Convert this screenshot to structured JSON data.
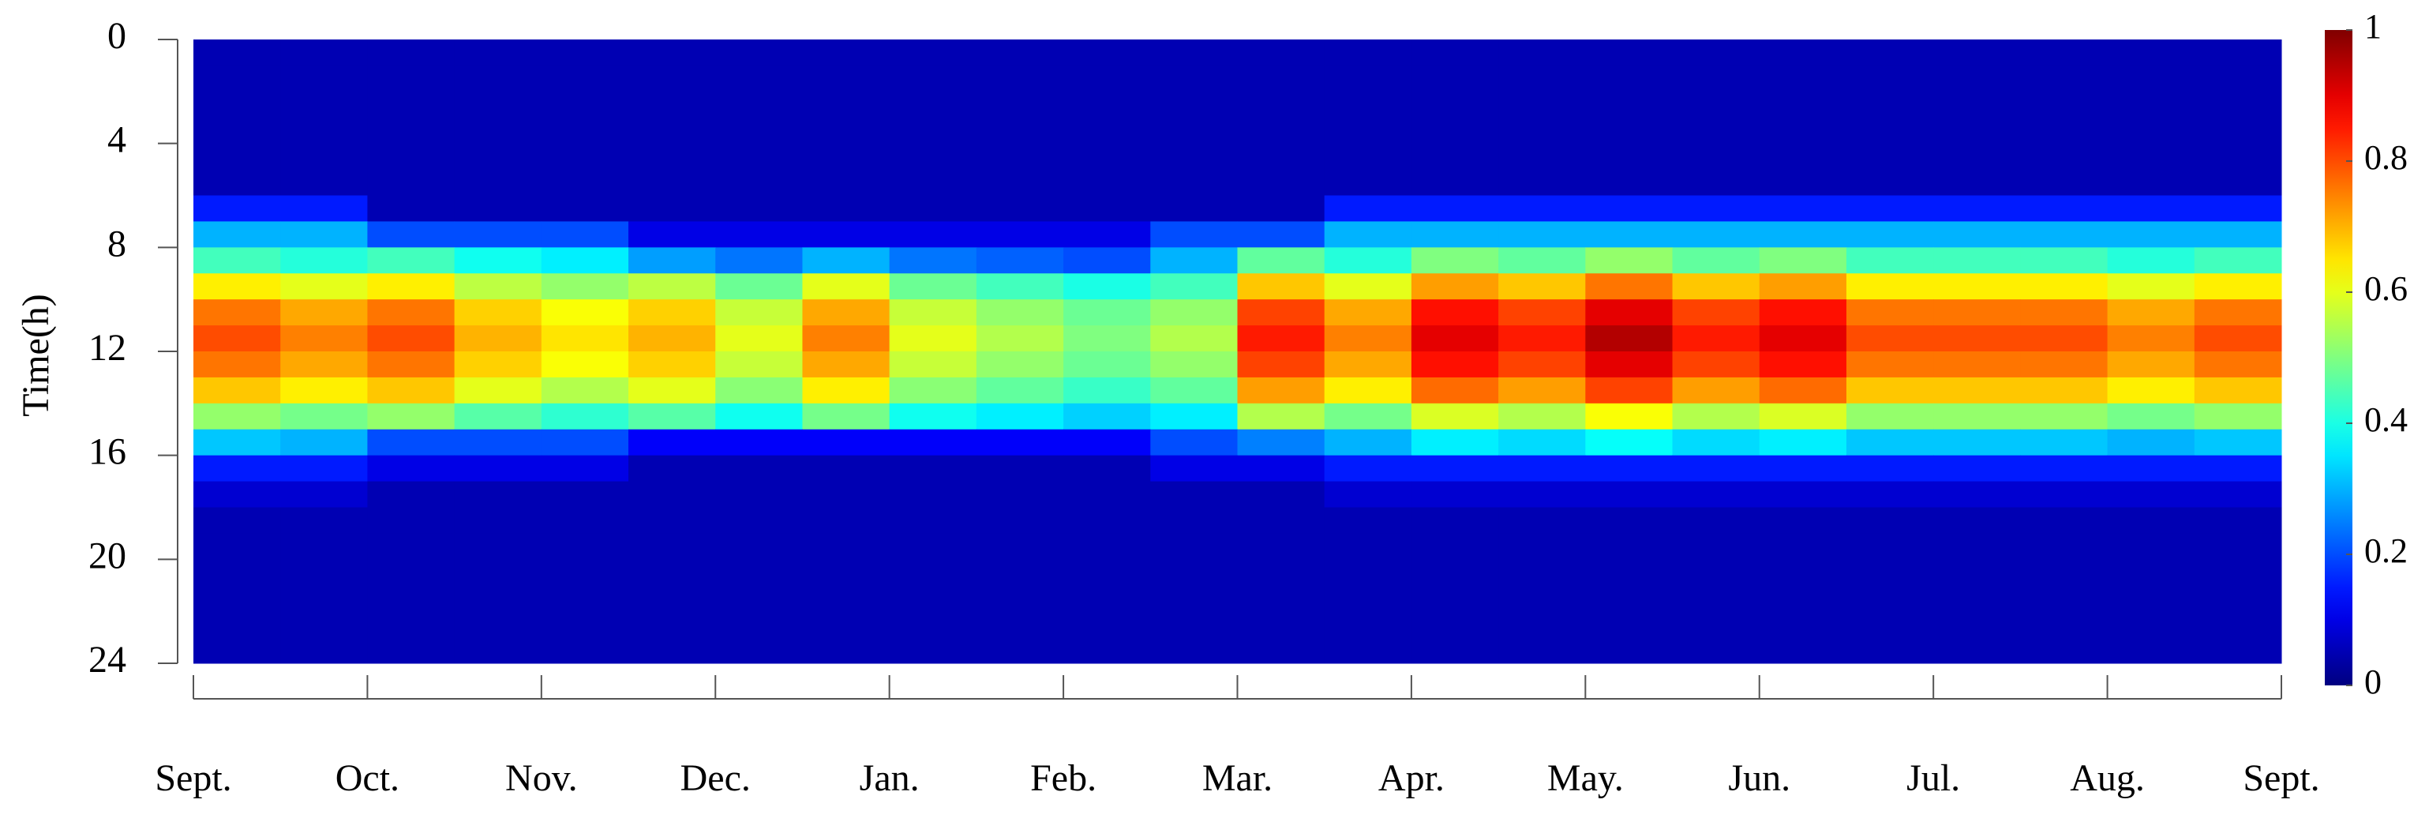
{
  "chart_data": {
    "type": "heatmap",
    "colormap": "jet",
    "y_label": "Time(h)",
    "xlim": [
      0,
      12
    ],
    "xticks": [
      {
        "value": 0,
        "label": "Sept."
      },
      {
        "value": 1,
        "label": "Oct."
      },
      {
        "value": 2,
        "label": "Nov."
      },
      {
        "value": 3,
        "label": "Dec."
      },
      {
        "value": 4,
        "label": "Jan."
      },
      {
        "value": 5,
        "label": "Feb."
      },
      {
        "value": 6,
        "label": "Mar."
      },
      {
        "value": 7,
        "label": "Apr."
      },
      {
        "value": 8,
        "label": "May."
      },
      {
        "value": 9,
        "label": "Jun."
      },
      {
        "value": 10,
        "label": "Jul."
      },
      {
        "value": 11,
        "label": "Aug."
      },
      {
        "value": 12,
        "label": "Sept."
      }
    ],
    "ylim": [
      0,
      24
    ],
    "y_inverted": true,
    "yticks": [
      0,
      4,
      8,
      12,
      16,
      20,
      24
    ],
    "clim": [
      0,
      1
    ],
    "cticks": [
      0,
      0.2,
      0.4,
      0.6,
      0.8,
      1
    ],
    "z": [
      [
        0.05,
        0.05,
        0.05,
        0.05,
        0.05,
        0.05,
        0.05,
        0.05,
        0.05,
        0.05,
        0.05,
        0.05,
        0.05,
        0.05,
        0.05,
        0.05,
        0.05,
        0.05,
        0.05,
        0.05,
        0.05,
        0.05,
        0.05,
        0.05
      ],
      [
        0.05,
        0.05,
        0.05,
        0.05,
        0.05,
        0.05,
        0.05,
        0.05,
        0.05,
        0.05,
        0.05,
        0.05,
        0.05,
        0.05,
        0.05,
        0.05,
        0.05,
        0.05,
        0.05,
        0.05,
        0.05,
        0.05,
        0.05,
        0.05
      ],
      [
        0.05,
        0.05,
        0.05,
        0.05,
        0.05,
        0.05,
        0.05,
        0.05,
        0.05,
        0.05,
        0.05,
        0.05,
        0.05,
        0.05,
        0.05,
        0.05,
        0.05,
        0.05,
        0.05,
        0.05,
        0.05,
        0.05,
        0.05,
        0.05
      ],
      [
        0.05,
        0.05,
        0.05,
        0.05,
        0.05,
        0.05,
        0.05,
        0.05,
        0.05,
        0.05,
        0.05,
        0.05,
        0.05,
        0.05,
        0.05,
        0.05,
        0.05,
        0.05,
        0.05,
        0.05,
        0.05,
        0.05,
        0.05,
        0.05
      ],
      [
        0.05,
        0.05,
        0.05,
        0.05,
        0.05,
        0.05,
        0.05,
        0.05,
        0.05,
        0.05,
        0.05,
        0.05,
        0.05,
        0.05,
        0.05,
        0.05,
        0.05,
        0.05,
        0.05,
        0.05,
        0.05,
        0.05,
        0.05,
        0.05
      ],
      [
        0.05,
        0.05,
        0.05,
        0.05,
        0.05,
        0.05,
        0.05,
        0.05,
        0.05,
        0.05,
        0.05,
        0.05,
        0.05,
        0.05,
        0.05,
        0.05,
        0.05,
        0.05,
        0.05,
        0.05,
        0.05,
        0.05,
        0.05,
        0.05
      ],
      [
        0.15,
        0.15,
        0.05,
        0.05,
        0.05,
        0.05,
        0.05,
        0.05,
        0.05,
        0.05,
        0.05,
        0.05,
        0.05,
        0.15,
        0.15,
        0.15,
        0.15,
        0.15,
        0.15,
        0.15,
        0.15,
        0.15,
        0.15,
        0.15
      ],
      [
        0.3,
        0.3,
        0.2,
        0.2,
        0.2,
        0.1,
        0.1,
        0.1,
        0.1,
        0.1,
        0.1,
        0.2,
        0.2,
        0.3,
        0.3,
        0.3,
        0.3,
        0.3,
        0.3,
        0.3,
        0.3,
        0.3,
        0.3,
        0.3
      ],
      [
        0.44,
        0.41,
        0.44,
        0.39,
        0.36,
        0.28,
        0.24,
        0.3,
        0.24,
        0.22,
        0.2,
        0.3,
        0.47,
        0.41,
        0.5,
        0.47,
        0.52,
        0.47,
        0.5,
        0.44,
        0.44,
        0.44,
        0.41,
        0.44
      ],
      [
        0.64,
        0.6,
        0.64,
        0.56,
        0.52,
        0.56,
        0.48,
        0.6,
        0.48,
        0.44,
        0.4,
        0.44,
        0.68,
        0.6,
        0.72,
        0.68,
        0.76,
        0.68,
        0.72,
        0.64,
        0.64,
        0.64,
        0.6,
        0.64
      ],
      [
        0.76,
        0.71,
        0.76,
        0.67,
        0.62,
        0.67,
        0.57,
        0.71,
        0.57,
        0.52,
        0.48,
        0.52,
        0.81,
        0.71,
        0.86,
        0.81,
        0.9,
        0.81,
        0.86,
        0.76,
        0.76,
        0.76,
        0.71,
        0.76
      ],
      [
        0.8,
        0.75,
        0.8,
        0.7,
        0.65,
        0.7,
        0.6,
        0.75,
        0.6,
        0.55,
        0.5,
        0.55,
        0.85,
        0.75,
        0.9,
        0.85,
        0.95,
        0.85,
        0.9,
        0.8,
        0.8,
        0.8,
        0.75,
        0.8
      ],
      [
        0.76,
        0.71,
        0.76,
        0.67,
        0.62,
        0.67,
        0.57,
        0.71,
        0.57,
        0.52,
        0.48,
        0.52,
        0.81,
        0.71,
        0.86,
        0.81,
        0.9,
        0.81,
        0.86,
        0.76,
        0.76,
        0.76,
        0.71,
        0.76
      ],
      [
        0.68,
        0.64,
        0.68,
        0.6,
        0.55,
        0.6,
        0.51,
        0.64,
        0.51,
        0.47,
        0.43,
        0.47,
        0.72,
        0.64,
        0.77,
        0.72,
        0.81,
        0.72,
        0.77,
        0.68,
        0.68,
        0.68,
        0.64,
        0.68
      ],
      [
        0.52,
        0.49,
        0.52,
        0.46,
        0.42,
        0.46,
        0.39,
        0.49,
        0.39,
        0.36,
        0.33,
        0.36,
        0.55,
        0.49,
        0.59,
        0.55,
        0.62,
        0.55,
        0.59,
        0.52,
        0.52,
        0.52,
        0.49,
        0.52
      ],
      [
        0.32,
        0.3,
        0.2,
        0.2,
        0.2,
        0.12,
        0.12,
        0.12,
        0.12,
        0.12,
        0.12,
        0.2,
        0.25,
        0.3,
        0.36,
        0.34,
        0.38,
        0.34,
        0.36,
        0.32,
        0.32,
        0.32,
        0.3,
        0.32
      ],
      [
        0.15,
        0.15,
        0.1,
        0.1,
        0.1,
        0.05,
        0.05,
        0.05,
        0.05,
        0.05,
        0.05,
        0.1,
        0.1,
        0.15,
        0.15,
        0.15,
        0.15,
        0.15,
        0.15,
        0.15,
        0.15,
        0.15,
        0.15,
        0.15
      ],
      [
        0.08,
        0.08,
        0.05,
        0.05,
        0.05,
        0.05,
        0.05,
        0.05,
        0.05,
        0.05,
        0.05,
        0.05,
        0.05,
        0.08,
        0.08,
        0.08,
        0.08,
        0.08,
        0.08,
        0.08,
        0.08,
        0.08,
        0.08,
        0.08
      ],
      [
        0.05,
        0.05,
        0.05,
        0.05,
        0.05,
        0.05,
        0.05,
        0.05,
        0.05,
        0.05,
        0.05,
        0.05,
        0.05,
        0.05,
        0.05,
        0.05,
        0.05,
        0.05,
        0.05,
        0.05,
        0.05,
        0.05,
        0.05,
        0.05
      ],
      [
        0.05,
        0.05,
        0.05,
        0.05,
        0.05,
        0.05,
        0.05,
        0.05,
        0.05,
        0.05,
        0.05,
        0.05,
        0.05,
        0.05,
        0.05,
        0.05,
        0.05,
        0.05,
        0.05,
        0.05,
        0.05,
        0.05,
        0.05,
        0.05
      ],
      [
        0.05,
        0.05,
        0.05,
        0.05,
        0.05,
        0.05,
        0.05,
        0.05,
        0.05,
        0.05,
        0.05,
        0.05,
        0.05,
        0.05,
        0.05,
        0.05,
        0.05,
        0.05,
        0.05,
        0.05,
        0.05,
        0.05,
        0.05,
        0.05
      ],
      [
        0.05,
        0.05,
        0.05,
        0.05,
        0.05,
        0.05,
        0.05,
        0.05,
        0.05,
        0.05,
        0.05,
        0.05,
        0.05,
        0.05,
        0.05,
        0.05,
        0.05,
        0.05,
        0.05,
        0.05,
        0.05,
        0.05,
        0.05,
        0.05
      ],
      [
        0.05,
        0.05,
        0.05,
        0.05,
        0.05,
        0.05,
        0.05,
        0.05,
        0.05,
        0.05,
        0.05,
        0.05,
        0.05,
        0.05,
        0.05,
        0.05,
        0.05,
        0.05,
        0.05,
        0.05,
        0.05,
        0.05,
        0.05,
        0.05
      ],
      [
        0.05,
        0.05,
        0.05,
        0.05,
        0.05,
        0.05,
        0.05,
        0.05,
        0.05,
        0.05,
        0.05,
        0.05,
        0.05,
        0.05,
        0.05,
        0.05,
        0.05,
        0.05,
        0.05,
        0.05,
        0.05,
        0.05,
        0.05,
        0.05
      ]
    ]
  }
}
